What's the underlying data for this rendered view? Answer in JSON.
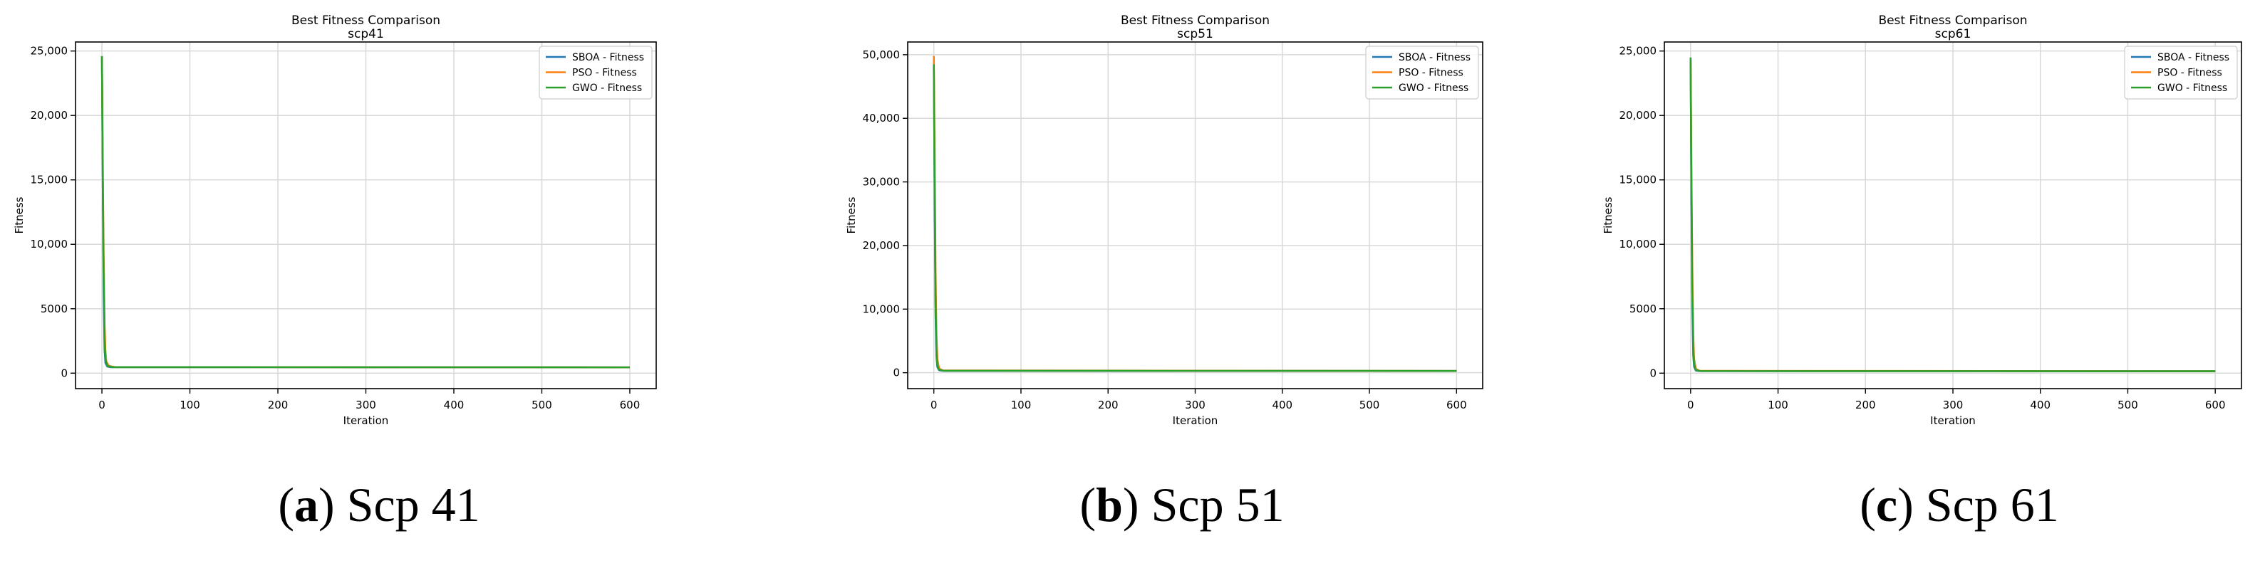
{
  "colors": {
    "SBOA": "#1f77b4",
    "PSO": "#ff7f0e",
    "GWO": "#2ca02c",
    "grid": "#d9d9d9",
    "axis": "#000000"
  },
  "chart_data": [
    {
      "type": "line",
      "title": "Best Fitness Comparison",
      "subtitle": "scp41",
      "xlabel": "Iteration",
      "ylabel": "Fitness",
      "xlim": [
        -30,
        630
      ],
      "ylim": [
        -1200,
        25700
      ],
      "xticks": [
        0,
        100,
        200,
        300,
        400,
        500,
        600
      ],
      "xtick_labels": [
        "0",
        "100",
        "200",
        "300",
        "400",
        "500",
        "600"
      ],
      "yticks": [
        0,
        5000,
        10000,
        15000,
        20000,
        25000
      ],
      "ytick_labels": [
        "0",
        "5000",
        "10,000",
        "15,000",
        "20,000",
        "25,000"
      ],
      "grid": true,
      "legend_position": "top-right",
      "series": [
        {
          "name": "SBOA - Fitness",
          "color": "#1f77b4",
          "points": [
            [
              0,
              24600
            ],
            [
              1,
              14500
            ],
            [
              2,
              6000
            ],
            [
              3,
              1800
            ],
            [
              4,
              800
            ],
            [
              6,
              520
            ],
            [
              10,
              460
            ],
            [
              600,
              450
            ]
          ]
        },
        {
          "name": "PSO - Fitness",
          "color": "#ff7f0e",
          "points": [
            [
              0,
              24500
            ],
            [
              1,
              16000
            ],
            [
              2,
              9000
            ],
            [
              3,
              3800
            ],
            [
              4,
              1800
            ],
            [
              5,
              900
            ],
            [
              8,
              560
            ],
            [
              15,
              470
            ],
            [
              600,
              450
            ]
          ]
        },
        {
          "name": "GWO - Fitness",
          "color": "#2ca02c",
          "points": [
            [
              0,
              24600
            ],
            [
              1,
              15000
            ],
            [
              2,
              7500
            ],
            [
              3,
              2600
            ],
            [
              4,
              1100
            ],
            [
              6,
              560
            ],
            [
              12,
              470
            ],
            [
              600,
              450
            ]
          ]
        }
      ],
      "caption_letter": "a",
      "caption_text": " Scp 41"
    },
    {
      "type": "line",
      "title": "Best Fitness Comparison",
      "subtitle": "scp51",
      "xlabel": "Iteration",
      "ylabel": "Fitness",
      "xlim": [
        -30,
        630
      ],
      "ylim": [
        -2500,
        52000
      ],
      "xticks": [
        0,
        100,
        200,
        300,
        400,
        500,
        600
      ],
      "xtick_labels": [
        "0",
        "100",
        "200",
        "300",
        "400",
        "500",
        "600"
      ],
      "yticks": [
        0,
        10000,
        20000,
        30000,
        40000,
        50000
      ],
      "ytick_labels": [
        "0",
        "10,000",
        "20,000",
        "30,000",
        "40,000",
        "50,000"
      ],
      "grid": true,
      "legend_position": "top-right",
      "series": [
        {
          "name": "SBOA - Fitness",
          "color": "#1f77b4",
          "points": [
            [
              0,
              48000
            ],
            [
              1,
              26000
            ],
            [
              2,
              9000
            ],
            [
              3,
              2500
            ],
            [
              4,
              900
            ],
            [
              6,
              400
            ],
            [
              10,
              300
            ],
            [
              600,
              280
            ]
          ]
        },
        {
          "name": "PSO - Fitness",
          "color": "#ff7f0e",
          "points": [
            [
              0,
              49800
            ],
            [
              1,
              32000
            ],
            [
              2,
              16000
            ],
            [
              3,
              6000
            ],
            [
              4,
              2200
            ],
            [
              6,
              700
            ],
            [
              10,
              350
            ],
            [
              600,
              280
            ]
          ]
        },
        {
          "name": "GWO - Fitness",
          "color": "#2ca02c",
          "points": [
            [
              0,
              48500
            ],
            [
              1,
              28000
            ],
            [
              2,
              11000
            ],
            [
              3,
              3500
            ],
            [
              4,
              1200
            ],
            [
              6,
              450
            ],
            [
              12,
              310
            ],
            [
              600,
              280
            ]
          ]
        }
      ],
      "caption_letter": "b",
      "caption_text": " Scp 51"
    },
    {
      "type": "line",
      "title": "Best Fitness Comparison",
      "subtitle": "scp61",
      "xlabel": "Iteration",
      "ylabel": "Fitness",
      "xlim": [
        -30,
        630
      ],
      "ylim": [
        -1200,
        25700
      ],
      "xticks": [
        0,
        100,
        200,
        300,
        400,
        500,
        600
      ],
      "xtick_labels": [
        "0",
        "100",
        "200",
        "300",
        "400",
        "500",
        "600"
      ],
      "yticks": [
        0,
        5000,
        10000,
        15000,
        20000,
        25000
      ],
      "ytick_labels": [
        "0",
        "5000",
        "10,000",
        "15,000",
        "20,000",
        "25,000"
      ],
      "grid": true,
      "legend_position": "top-right",
      "series": [
        {
          "name": "SBOA - Fitness",
          "color": "#1f77b4",
          "points": [
            [
              0,
              24400
            ],
            [
              1,
              13000
            ],
            [
              2,
              5000
            ],
            [
              3,
              1400
            ],
            [
              4,
              500
            ],
            [
              6,
              200
            ],
            [
              10,
              160
            ],
            [
              600,
              150
            ]
          ]
        },
        {
          "name": "PSO - Fitness",
          "color": "#ff7f0e",
          "points": [
            [
              0,
              24300
            ],
            [
              1,
              15500
            ],
            [
              2,
              8000
            ],
            [
              3,
              3000
            ],
            [
              4,
              1100
            ],
            [
              6,
              350
            ],
            [
              10,
              180
            ],
            [
              600,
              150
            ]
          ]
        },
        {
          "name": "GWO - Fitness",
          "color": "#2ca02c",
          "points": [
            [
              0,
              24500
            ],
            [
              1,
              14000
            ],
            [
              2,
              6200
            ],
            [
              3,
              2000
            ],
            [
              4,
              700
            ],
            [
              6,
              240
            ],
            [
              12,
              160
            ],
            [
              600,
              150
            ]
          ]
        }
      ],
      "caption_letter": "c",
      "caption_text": " Scp 61"
    }
  ]
}
